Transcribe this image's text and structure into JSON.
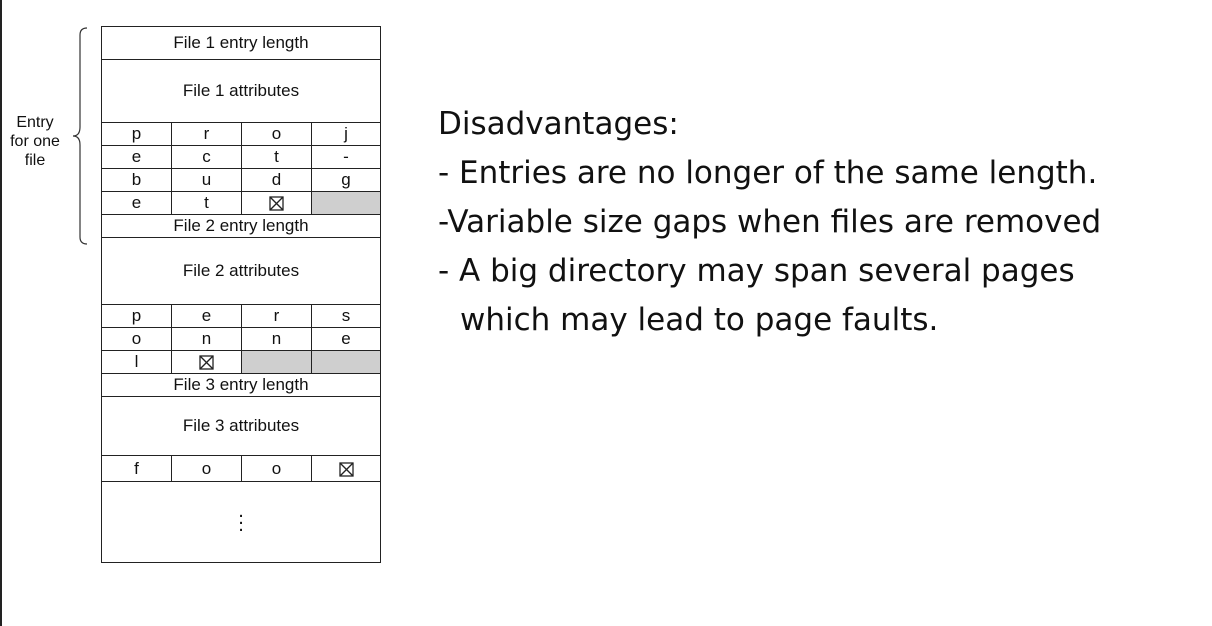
{
  "brace_label": [
    "Entry",
    "for one",
    "file"
  ],
  "directory": {
    "files": [
      {
        "entry_length_label": "File 1 entry length",
        "attributes_label": "File 1 attributes",
        "name_rows": [
          [
            "p",
            "r",
            "o",
            "j"
          ],
          [
            "e",
            "c",
            "t",
            "-"
          ],
          [
            "b",
            "u",
            "d",
            "g"
          ],
          [
            "e",
            "t",
            "END",
            "PAD"
          ]
        ]
      },
      {
        "entry_length_label": "File 2 entry length",
        "attributes_label": "File 2 attributes",
        "name_rows": [
          [
            "p",
            "e",
            "r",
            "s"
          ],
          [
            "o",
            "n",
            "n",
            "e"
          ],
          [
            "l",
            "END",
            "PAD",
            "PAD"
          ]
        ]
      },
      {
        "entry_length_label": "File 3 entry length",
        "attributes_label": "File 3 attributes",
        "name_rows": [
          [
            "f",
            "o",
            "o",
            "END"
          ]
        ]
      }
    ],
    "cell_markers": {
      "END": "end-of-name-marker-icon",
      "PAD": "padding-cell"
    },
    "pad_color": "#cfcfcf"
  },
  "notes": {
    "heading": "Disadvantages:",
    "points": [
      "- Entries are no longer of the same length.",
      "-Variable size gaps when files are removed",
      "- A big directory may span several pages",
      "which may lead to page faults."
    ]
  }
}
